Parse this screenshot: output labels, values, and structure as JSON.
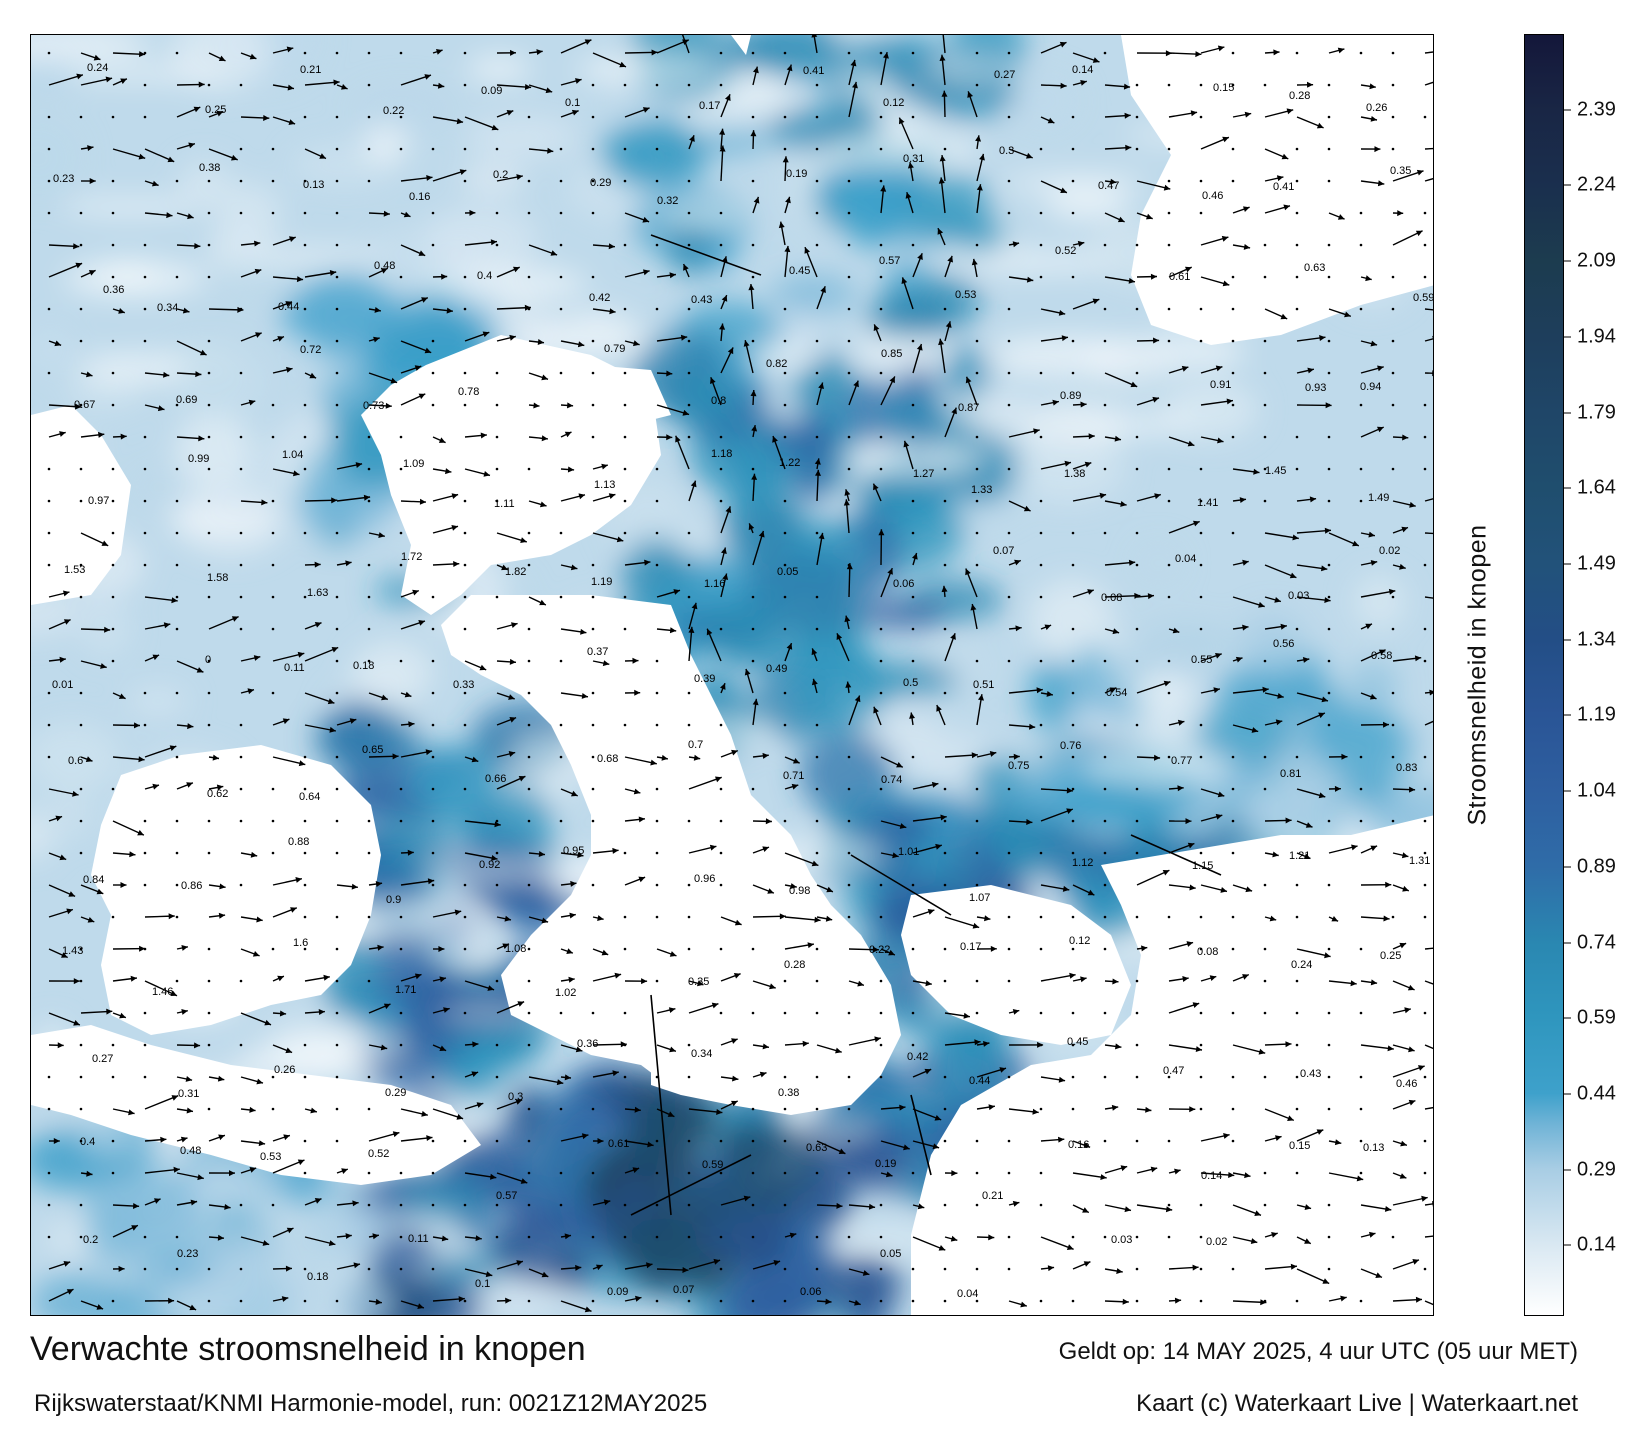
{
  "title": "Verwachte stroomsnelheid in knopen",
  "subtitle": "Rijkswaterstaat/KNMI Harmonie-model, run: 0021Z12MAY2025",
  "valid_time": "Geldt op: 14 MAY 2025, 4 uur UTC (05 uur MET)",
  "credit": "Kaart (c) Waterkaart Live | Waterkaart.net",
  "colorbar": {
    "label": "Stroomsnelheid in knopen",
    "ticks": [
      "2.39",
      "2.24",
      "2.09",
      "1.94",
      "1.79",
      "1.64",
      "1.49",
      "1.34",
      "1.19",
      "1.04",
      "0.89",
      "0.74",
      "0.59",
      "0.44",
      "0.29",
      "0.14"
    ],
    "min": 0.0,
    "max": 2.54,
    "stops": [
      {
        "v": 0.0,
        "c": "#ffffff"
      },
      {
        "v": 0.14,
        "c": "#d9e8f2"
      },
      {
        "v": 0.29,
        "c": "#a8cde4"
      },
      {
        "v": 0.38,
        "c": "#6fb3d6"
      },
      {
        "v": 0.44,
        "c": "#3ea1cb"
      },
      {
        "v": 0.59,
        "c": "#2f96be"
      },
      {
        "v": 0.74,
        "c": "#2a87b1"
      },
      {
        "v": 0.89,
        "c": "#2f6ca8"
      },
      {
        "v": 1.04,
        "c": "#2e5fa0"
      },
      {
        "v": 1.19,
        "c": "#2a5596"
      },
      {
        "v": 1.34,
        "c": "#234e86"
      },
      {
        "v": 1.49,
        "c": "#22527a"
      },
      {
        "v": 1.64,
        "c": "#1f4e6e"
      },
      {
        "v": 1.79,
        "c": "#1f4668"
      },
      {
        "v": 1.94,
        "c": "#1e3e5c"
      },
      {
        "v": 2.09,
        "c": "#1c3c4f"
      },
      {
        "v": 2.24,
        "c": "#1a2f4e"
      },
      {
        "v": 2.39,
        "c": "#192645"
      },
      {
        "v": 2.54,
        "c": "#14173a"
      }
    ]
  },
  "colors": {
    "land": "#ffffff",
    "frame": "#000000",
    "arrow": "#000000"
  },
  "speed_labels": [
    {
      "t": "0.24"
    },
    {
      "t": "0.25"
    },
    {
      "t": "0.21"
    },
    {
      "t": "0.22"
    },
    {
      "t": "0.09"
    },
    {
      "t": "0.1"
    },
    {
      "t": "0.17"
    },
    {
      "t": "0.41"
    },
    {
      "t": "0.12"
    },
    {
      "t": "0.27"
    },
    {
      "t": "0.14"
    },
    {
      "t": "0.15"
    },
    {
      "t": "0.28"
    },
    {
      "t": "0.26"
    },
    {
      "t": "0.23"
    },
    {
      "t": "0.38"
    },
    {
      "t": "0.13"
    },
    {
      "t": "0.16"
    },
    {
      "t": "0.2"
    },
    {
      "t": "0.29"
    },
    {
      "t": "0.32"
    },
    {
      "t": "0.19"
    },
    {
      "t": "0.31"
    },
    {
      "t": "0.3"
    },
    {
      "t": "0.47"
    },
    {
      "t": "0.46"
    },
    {
      "t": "0.41"
    },
    {
      "t": "0.35"
    },
    {
      "t": "0.36"
    },
    {
      "t": "0.34"
    },
    {
      "t": "0.44"
    },
    {
      "t": "0.48"
    },
    {
      "t": "0.4"
    },
    {
      "t": "0.42"
    },
    {
      "t": "0.43"
    },
    {
      "t": "0.45"
    },
    {
      "t": "0.57"
    },
    {
      "t": "0.53"
    },
    {
      "t": "0.52"
    },
    {
      "t": "0.61"
    },
    {
      "t": "0.63"
    },
    {
      "t": "0.59"
    },
    {
      "t": "0.67"
    },
    {
      "t": "0.69"
    },
    {
      "t": "0.72"
    },
    {
      "t": "0.73"
    },
    {
      "t": "0.78"
    },
    {
      "t": "0.79"
    },
    {
      "t": "0.8"
    },
    {
      "t": "0.82"
    },
    {
      "t": "0.85"
    },
    {
      "t": "0.87"
    },
    {
      "t": "0.89"
    },
    {
      "t": "0.91"
    },
    {
      "t": "0.93"
    },
    {
      "t": "0.94"
    },
    {
      "t": "0.97"
    },
    {
      "t": "0.99"
    },
    {
      "t": "1.04"
    },
    {
      "t": "1.09"
    },
    {
      "t": "1.11"
    },
    {
      "t": "1.13"
    },
    {
      "t": "1.18"
    },
    {
      "t": "1.22"
    },
    {
      "t": "1.27"
    },
    {
      "t": "1.33"
    },
    {
      "t": "1.38"
    },
    {
      "t": "1.41"
    },
    {
      "t": "1.45"
    },
    {
      "t": "1.49"
    },
    {
      "t": "1.53"
    },
    {
      "t": "1.58"
    },
    {
      "t": "1.63"
    },
    {
      "t": "1.72"
    },
    {
      "t": "1.82"
    },
    {
      "t": "1.19"
    },
    {
      "t": "1.16"
    },
    {
      "t": "0.05"
    },
    {
      "t": "0.06"
    },
    {
      "t": "0.07"
    },
    {
      "t": "0.08"
    },
    {
      "t": "0.04"
    },
    {
      "t": "0.03"
    },
    {
      "t": "0.02"
    },
    {
      "t": "0.01"
    },
    {
      "t": "0"
    },
    {
      "t": "0.11"
    },
    {
      "t": "0.18"
    },
    {
      "t": "0.33"
    },
    {
      "t": "0.37"
    },
    {
      "t": "0.39"
    },
    {
      "t": "0.49"
    },
    {
      "t": "0.5"
    },
    {
      "t": "0.51"
    },
    {
      "t": "0.54"
    },
    {
      "t": "0.55"
    },
    {
      "t": "0.56"
    },
    {
      "t": "0.58"
    },
    {
      "t": "0.6"
    },
    {
      "t": "0.62"
    },
    {
      "t": "0.64"
    },
    {
      "t": "0.65"
    },
    {
      "t": "0.66"
    },
    {
      "t": "0.68"
    },
    {
      "t": "0.7"
    },
    {
      "t": "0.71"
    },
    {
      "t": "0.74"
    },
    {
      "t": "0.75"
    },
    {
      "t": "0.76"
    },
    {
      "t": "0.77"
    },
    {
      "t": "0.81"
    },
    {
      "t": "0.83"
    },
    {
      "t": "0.84"
    },
    {
      "t": "0.86"
    },
    {
      "t": "0.88"
    },
    {
      "t": "0.9"
    },
    {
      "t": "0.92"
    },
    {
      "t": "0.95"
    },
    {
      "t": "0.96"
    },
    {
      "t": "0.98"
    },
    {
      "t": "1.01"
    },
    {
      "t": "1.07"
    },
    {
      "t": "1.12"
    },
    {
      "t": "1.15"
    },
    {
      "t": "1.21"
    },
    {
      "t": "1.31"
    },
    {
      "t": "1.43"
    },
    {
      "t": "1.46"
    },
    {
      "t": "1.6"
    },
    {
      "t": "1.71"
    },
    {
      "t": "1.08"
    },
    {
      "t": "1.02"
    },
    {
      "t": "0.35"
    },
    {
      "t": "0.28"
    },
    {
      "t": "0.22"
    },
    {
      "t": "0.17"
    },
    {
      "t": "0.12"
    },
    {
      "t": "0.08"
    },
    {
      "t": "0.24"
    },
    {
      "t": "0.25"
    },
    {
      "t": "0.27"
    },
    {
      "t": "0.31"
    },
    {
      "t": "0.26"
    },
    {
      "t": "0.29"
    },
    {
      "t": "0.3"
    },
    {
      "t": "0.36"
    },
    {
      "t": "0.34"
    },
    {
      "t": "0.38"
    },
    {
      "t": "0.42"
    },
    {
      "t": "0.44"
    },
    {
      "t": "0.45"
    },
    {
      "t": "0.47"
    },
    {
      "t": "0.43"
    },
    {
      "t": "0.46"
    },
    {
      "t": "0.4"
    },
    {
      "t": "0.48"
    },
    {
      "t": "0.53"
    },
    {
      "t": "0.52"
    },
    {
      "t": "0.57"
    },
    {
      "t": "0.61"
    },
    {
      "t": "0.59"
    },
    {
      "t": "0.63"
    },
    {
      "t": "0.19"
    },
    {
      "t": "0.21"
    },
    {
      "t": "0.16"
    },
    {
      "t": "0.14"
    },
    {
      "t": "0.15"
    },
    {
      "t": "0.13"
    },
    {
      "t": "0.2"
    },
    {
      "t": "0.23"
    },
    {
      "t": "0.18"
    },
    {
      "t": "0.11"
    },
    {
      "t": "0.1"
    },
    {
      "t": "0.09"
    },
    {
      "t": "0.07"
    },
    {
      "t": "0.06"
    },
    {
      "t": "0.05"
    },
    {
      "t": "0.04"
    },
    {
      "t": "0.03"
    },
    {
      "t": "0.02"
    }
  ]
}
